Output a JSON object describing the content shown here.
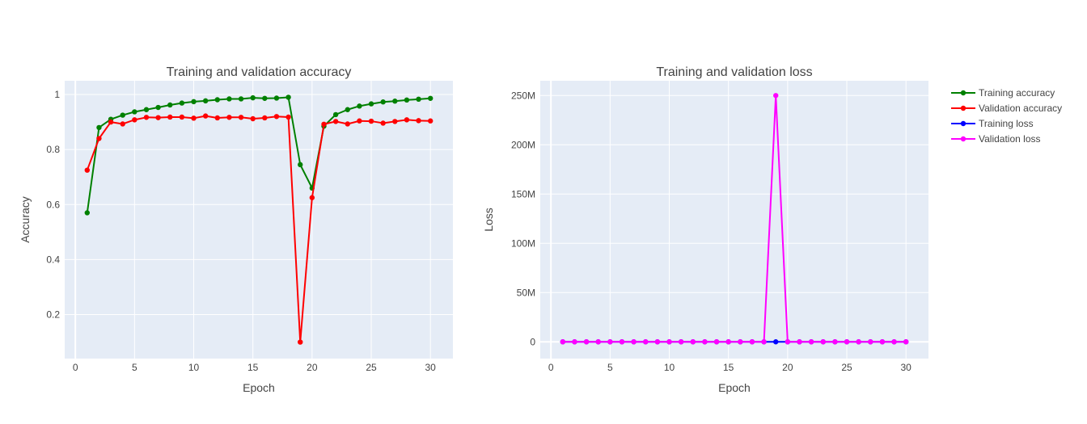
{
  "chart_data": [
    {
      "type": "line",
      "title": "Training and validation accuracy",
      "xlabel": "Epoch",
      "ylabel": "Accuracy",
      "xlim": [
        -0.9,
        31.9
      ],
      "ylim": [
        0.04,
        1.05
      ],
      "xticks": [
        0,
        5,
        10,
        15,
        20,
        25,
        30
      ],
      "xtick_labels": [
        "0",
        "5",
        "10",
        "15",
        "20",
        "25",
        "30"
      ],
      "yticks": [
        0.2,
        0.4,
        0.6,
        0.8,
        1.0
      ],
      "ytick_labels": [
        "0.2",
        "0.4",
        "0.6",
        "0.8",
        "1"
      ],
      "grid": true,
      "x": [
        1,
        2,
        3,
        4,
        5,
        6,
        7,
        8,
        9,
        10,
        11,
        12,
        13,
        14,
        15,
        16,
        17,
        18,
        19,
        20,
        21,
        22,
        23,
        24,
        25,
        26,
        27,
        28,
        29,
        30
      ],
      "series": [
        {
          "name": "Training accuracy",
          "color": "#008000",
          "values": [
            0.57,
            0.88,
            0.91,
            0.925,
            0.937,
            0.945,
            0.953,
            0.962,
            0.969,
            0.974,
            0.977,
            0.981,
            0.984,
            0.984,
            0.988,
            0.986,
            0.987,
            0.99,
            0.745,
            0.66,
            0.885,
            0.927,
            0.945,
            0.958,
            0.966,
            0.973,
            0.976,
            0.98,
            0.983,
            0.986
          ]
        },
        {
          "name": "Validation accuracy",
          "color": "#ff0000",
          "values": [
            0.725,
            0.84,
            0.9,
            0.893,
            0.908,
            0.917,
            0.916,
            0.918,
            0.918,
            0.914,
            0.922,
            0.915,
            0.917,
            0.917,
            0.912,
            0.915,
            0.92,
            0.918,
            0.1,
            0.625,
            0.892,
            0.902,
            0.893,
            0.904,
            0.903,
            0.896,
            0.902,
            0.908,
            0.905,
            0.904
          ]
        }
      ]
    },
    {
      "type": "line",
      "title": "Training and validation loss",
      "xlabel": "Epoch",
      "ylabel": "Loss",
      "xlim": [
        -0.9,
        31.9
      ],
      "ylim": [
        -17000000,
        265000000
      ],
      "xticks": [
        0,
        5,
        10,
        15,
        20,
        25,
        30
      ],
      "xtick_labels": [
        "0",
        "5",
        "10",
        "15",
        "20",
        "25",
        "30"
      ],
      "yticks": [
        0,
        50000000,
        100000000,
        150000000,
        200000000,
        250000000
      ],
      "ytick_labels": [
        "0",
        "50M",
        "100M",
        "150M",
        "200M",
        "250M"
      ],
      "grid": true,
      "x": [
        1,
        2,
        3,
        4,
        5,
        6,
        7,
        8,
        9,
        10,
        11,
        12,
        13,
        14,
        15,
        16,
        17,
        18,
        19,
        20,
        21,
        22,
        23,
        24,
        25,
        26,
        27,
        28,
        29,
        30
      ],
      "series": [
        {
          "name": "Training loss",
          "color": "#0000ff",
          "values": [
            0,
            0,
            0,
            0,
            0,
            0,
            0,
            0,
            0,
            0,
            0,
            0,
            0,
            0,
            0,
            0,
            0,
            0,
            0,
            0,
            0,
            0,
            0,
            0,
            0,
            0,
            0,
            0,
            0,
            0
          ]
        },
        {
          "name": "Validation loss",
          "color": "#ff00ff",
          "values": [
            0,
            0,
            0,
            0,
            0,
            0,
            0,
            0,
            0,
            0,
            0,
            0,
            0,
            0,
            0,
            0,
            0,
            0,
            250000000,
            0,
            0,
            0,
            0,
            0,
            0,
            0,
            0,
            0,
            0,
            0
          ]
        }
      ]
    }
  ],
  "legend": {
    "placement": "right",
    "entries": [
      {
        "label": "Training accuracy",
        "color": "#008000"
      },
      {
        "label": "Validation accuracy",
        "color": "#ff0000"
      },
      {
        "label": "Training loss",
        "color": "#0000ff"
      },
      {
        "label": "Validation loss",
        "color": "#ff00ff"
      }
    ]
  },
  "colors": {
    "plot_background": "#e5ecf6",
    "gridline": "#ffffff",
    "text": "#444444"
  }
}
